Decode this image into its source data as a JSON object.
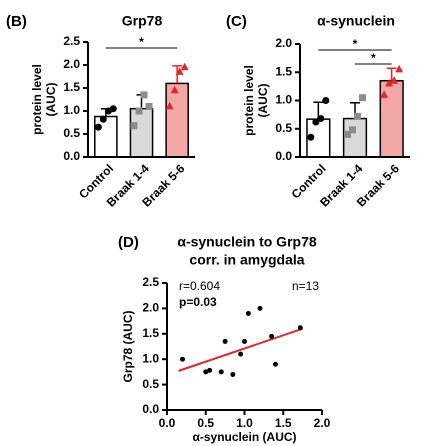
{
  "chart_data": [
    {
      "type": "bar",
      "panel_label": "(B)",
      "title": "Grp78",
      "y_label": [
        "protein level",
        "(AUC)"
      ],
      "categories": [
        "Control",
        "Braak 1-4",
        "Braak 5-6"
      ],
      "values": [
        0.88,
        1.05,
        1.6
      ],
      "errors": [
        0.17,
        0.3,
        0.38
      ],
      "points": [
        [
          0.65,
          0.82,
          1.0,
          1.05
        ],
        [
          0.68,
          1.0,
          1.35,
          1.1
        ],
        [
          1.1,
          1.45,
          1.85,
          1.95
        ]
      ],
      "colors": [
        "#ffffff",
        "#d9d9d9",
        "#f4a7a7"
      ],
      "point_colors": [
        "#000000",
        "#8c8c8c",
        "#e02828"
      ],
      "markers": [
        "circle",
        "square",
        "triangle"
      ],
      "ylim": [
        0,
        2.5
      ],
      "yticks": [
        {
          "value": 0,
          "label": "0.0"
        },
        0.5,
        {
          "value": 1,
          "label": "1.0"
        },
        1.5,
        {
          "value": 2,
          "label": "2.0"
        },
        2.5
      ],
      "significance": [
        {
          "between": [
            "Control",
            "Braak 5-6"
          ],
          "label": "*"
        }
      ]
    },
    {
      "type": "bar",
      "panel_label": "(C)",
      "title": "α-synuclein",
      "y_label": [
        "protein level",
        "(AUC)"
      ],
      "categories": [
        "Control",
        "Braak 1-4",
        "Braak 5-6"
      ],
      "values": [
        0.67,
        0.68,
        1.35
      ],
      "errors": [
        0.3,
        0.28,
        0.22
      ],
      "points": [
        [
          0.35,
          0.62,
          0.68,
          1.0
        ],
        [
          0.4,
          0.48,
          0.72,
          1.05
        ],
        [
          1.1,
          1.3,
          1.35,
          1.55
        ]
      ],
      "colors": [
        "#ffffff",
        "#d9d9d9",
        "#f4a7a7"
      ],
      "point_colors": [
        "#000000",
        "#8c8c8c",
        "#e02828"
      ],
      "markers": [
        "circle",
        "square",
        "triangle"
      ],
      "ylim": [
        0,
        2
      ],
      "yticks": [
        {
          "value": 0,
          "label": "0.0"
        },
        0.5,
        {
          "value": 1,
          "label": "1.0"
        },
        1.5,
        {
          "value": 2,
          "label": "2.0"
        }
      ],
      "significance": [
        {
          "between": [
            "Control",
            "Braak 5-6"
          ],
          "label": "*"
        },
        {
          "between": [
            "Braak 1-4",
            "Braak 5-6"
          ],
          "label": "*"
        }
      ]
    },
    {
      "type": "scatter",
      "panel_label": "(D)",
      "title": [
        "α-synuclein to Grp78",
        "corr. in amygdala"
      ],
      "x_label": "α-synuclein (AUC)",
      "y_label": "Grp78 (AUC)",
      "x": [
        0.2,
        0.5,
        0.55,
        0.7,
        0.75,
        0.85,
        0.95,
        1.0,
        1.05,
        1.2,
        1.35,
        1.4,
        1.72
      ],
      "y": [
        1.0,
        0.75,
        0.78,
        0.75,
        1.35,
        0.7,
        1.1,
        1.35,
        1.9,
        2.0,
        1.45,
        0.9,
        1.62
      ],
      "color": "#000000",
      "fit": {
        "x": [
          0.15,
          1.75
        ],
        "y": [
          0.77,
          1.6
        ],
        "color": "#e02828"
      },
      "r_label": "r=0.604",
      "p_label": "p=0.03",
      "p_color": "#d42020",
      "n_label": "n=13",
      "xlim": [
        0,
        2
      ],
      "xticks": [
        {
          "value": 0,
          "label": "0.0"
        },
        0.5,
        {
          "value": 1,
          "label": "1.0"
        },
        1.5,
        {
          "value": 2,
          "label": "2.0"
        }
      ],
      "ylim": [
        0,
        2.5
      ],
      "yticks": [
        {
          "value": 0,
          "label": "0.0"
        },
        0.5,
        {
          "value": 1,
          "label": "1.0"
        },
        1.5,
        {
          "value": 2,
          "label": "2.0"
        },
        2.5
      ]
    }
  ]
}
